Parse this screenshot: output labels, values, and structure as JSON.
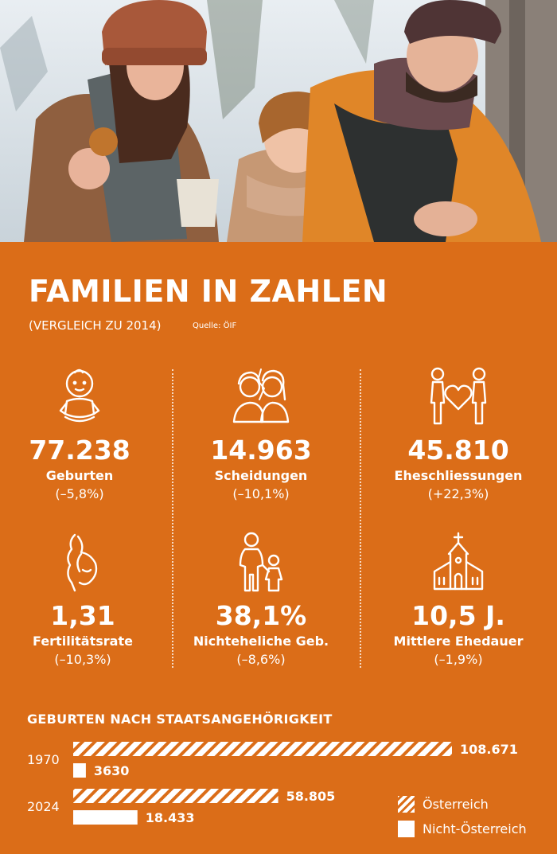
{
  "colors": {
    "panel": "#db6d18",
    "text": "#ffffff",
    "hatch_bg": "#db6d18"
  },
  "title": "FAMILIEN IN ZAHLEN",
  "subtitle": "(VERGLEICH ZU 2014)",
  "source": "Quelle: ÖIF",
  "stats": [
    {
      "icon": "baby-icon",
      "value": "77.238",
      "label": "Geburten",
      "change": "(–5,8%)"
    },
    {
      "icon": "divorce-icon",
      "value": "14.963",
      "label": "Scheidungen",
      "change": "(–10,1%)"
    },
    {
      "icon": "couple-heart-icon",
      "value": "45.810",
      "label": "Eheschliessungen",
      "change": "(+22,3%)"
    },
    {
      "icon": "pregnant-icon",
      "value": "1,31",
      "label": "Fertilitätsrate",
      "change": "(–10,3%)"
    },
    {
      "icon": "parent-child-icon",
      "value": "38,1%",
      "label": "Nichteheliche Geb.",
      "change": "(–8,6%)"
    },
    {
      "icon": "church-icon",
      "value": "10,5 J.",
      "label": "Mittlere Ehedauer",
      "change": "(–1,9%)"
    }
  ],
  "chart_data": {
    "type": "bar",
    "orientation": "horizontal",
    "title": "GEBURTEN NACH STAATSANGEHÖRIGKEIT",
    "categories": [
      "1970",
      "2024"
    ],
    "series": [
      {
        "name": "Österreich",
        "pattern": "hatched",
        "values": [
          108671,
          58805
        ],
        "labels": [
          "108.671",
          "58.805"
        ]
      },
      {
        "name": "Nicht-Österreich",
        "pattern": "solid",
        "values": [
          3630,
          18433
        ],
        "labels": [
          "3630",
          "18.433"
        ]
      }
    ],
    "legend_position": "bottom-right",
    "grid": false
  }
}
